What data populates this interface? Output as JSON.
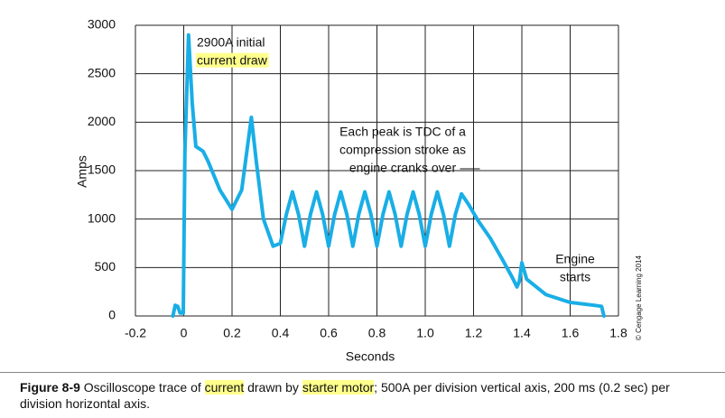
{
  "chart_data": {
    "type": "line",
    "x_label": "Seconds",
    "y_label": "Amps",
    "color": "#19aee6",
    "grid": true,
    "xlim": [
      -0.2,
      1.8
    ],
    "ylim": [
      0,
      3000
    ],
    "xticks": [
      -0.2,
      0,
      0.2,
      0.4,
      0.6,
      0.8,
      {
        "value": 1,
        "label": "1.0"
      },
      1.2,
      1.4,
      1.6,
      1.8
    ],
    "yticks": [
      0,
      500,
      1000,
      1500,
      2000,
      2500,
      3000
    ],
    "x": [
      -0.045,
      -0.035,
      -0.025,
      -0.015,
      -0.002,
      0.005,
      0.02,
      0.035,
      0.05,
      0.08,
      0.1,
      0.15,
      0.2,
      0.24,
      0.28,
      0.3,
      0.33,
      0.37,
      0.4,
      0.425,
      0.45,
      0.475,
      0.5,
      0.525,
      0.55,
      0.575,
      0.6,
      0.625,
      0.65,
      0.675,
      0.7,
      0.725,
      0.75,
      0.775,
      0.8,
      0.825,
      0.85,
      0.875,
      0.9,
      0.925,
      0.95,
      0.975,
      1.0,
      1.025,
      1.05,
      1.075,
      1.1,
      1.125,
      1.15,
      1.18,
      1.22,
      1.27,
      1.32,
      1.36,
      1.38,
      1.39,
      1.4,
      1.42,
      1.5,
      1.6,
      1.7,
      1.73,
      1.74
    ],
    "values": [
      0,
      110,
      100,
      30,
      30,
      1700,
      2900,
      2200,
      1750,
      1700,
      1600,
      1300,
      1100,
      1300,
      2050,
      1600,
      1000,
      720,
      750,
      1050,
      1280,
      1050,
      720,
      1050,
      1280,
      1050,
      720,
      1050,
      1280,
      1050,
      720,
      1050,
      1280,
      1050,
      720,
      1050,
      1280,
      1050,
      720,
      1050,
      1280,
      1050,
      720,
      1050,
      1280,
      1050,
      720,
      1050,
      1260,
      1150,
      980,
      800,
      580,
      400,
      300,
      360,
      550,
      380,
      220,
      140,
      110,
      100,
      0
    ],
    "annotations": [
      [
        "2900A initial",
        "current draw"
      ],
      [
        "Each peak is TDC of a",
        "compression stroke as",
        "engine cranks over"
      ],
      [
        "Engine",
        "starts"
      ]
    ],
    "credit": "© Cengage Learning 2014"
  },
  "caption": {
    "label": "Figure 8-9",
    "parts": [
      " Oscilloscope trace of ",
      "current",
      " drawn by ",
      "starter motor",
      "; 500A per division vertical axis, 200 ms (0.2 sec) per division horizontal axis."
    ]
  }
}
